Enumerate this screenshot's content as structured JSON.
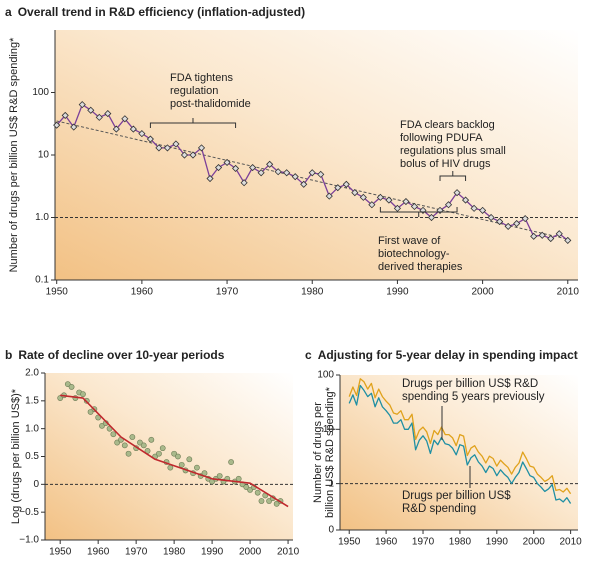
{
  "chart_data": [
    {
      "type": "line",
      "panel": "a",
      "title": "Overall trend in R&D efficiency (inflation-adjusted)",
      "ylabel": [
        "Number of drugs per billion US$ R&D spending*"
      ],
      "x": [
        1950,
        1951,
        1952,
        1953,
        1954,
        1955,
        1956,
        1957,
        1958,
        1959,
        1960,
        1961,
        1962,
        1963,
        1964,
        1965,
        1966,
        1967,
        1968,
        1969,
        1970,
        1971,
        1972,
        1973,
        1974,
        1975,
        1976,
        1977,
        1978,
        1979,
        1980,
        1981,
        1982,
        1983,
        1984,
        1985,
        1986,
        1987,
        1988,
        1989,
        1990,
        1991,
        1992,
        1993,
        1994,
        1995,
        1996,
        1997,
        1998,
        1999,
        2000,
        2001,
        2002,
        2003,
        2004,
        2005,
        2006,
        2007,
        2008,
        2009,
        2010
      ],
      "series": [
        {
          "color": "#7b3f99",
          "values": [
            30,
            43,
            28,
            64,
            52,
            40,
            46,
            26,
            38,
            26,
            22,
            18,
            13,
            13,
            15,
            10,
            10,
            13,
            4.2,
            6.3,
            7.6,
            6.1,
            3.6,
            6.3,
            5.2,
            7.1,
            5.4,
            5.2,
            4.5,
            3.4,
            5.2,
            4.9,
            2.2,
            3.0,
            3.4,
            2.5,
            2.1,
            1.6,
            2.1,
            1.9,
            1.4,
            1.8,
            1.5,
            1.3,
            1.0,
            1.3,
            1.6,
            2.5,
            1.9,
            1.4,
            1.3,
            1.0,
            0.86,
            0.72,
            0.8,
            0.96,
            0.5,
            0.52,
            0.46,
            0.55,
            0.43
          ]
        }
      ],
      "marker": "diamond",
      "trend": {
        "x": [
          1950,
          2010
        ],
        "values": [
          35,
          0.45
        ]
      },
      "reference_line": 1,
      "ylog": true,
      "xlim": [
        1949.8,
        2011.2
      ],
      "ylim": [
        0.1,
        1000
      ],
      "xticks": [
        1950,
        1960,
        1970,
        1980,
        1990,
        2000,
        2010
      ],
      "yticks": [
        0.1,
        {
          "value": 1,
          "label": "1.0"
        },
        10,
        100
      ],
      "annotations": [
        {
          "lines": [
            "FDA tightens",
            "regulation",
            "post-thalidomide"
          ],
          "x": [
            1961,
            1971
          ]
        },
        {
          "lines": [
            "FDA clears backlog",
            "following PDUFA",
            "regulations plus small",
            "bolus of HIV drugs"
          ],
          "x": [
            1995,
            1998
          ]
        },
        {
          "lines": [
            "First wave of",
            "biotechnology-",
            "derived therapies"
          ],
          "x": [
            1988,
            1997
          ]
        }
      ]
    },
    {
      "type": "scatter",
      "panel": "b",
      "title": "Rate of decline over 10-year periods",
      "ylabel": [
        "Log (drugs per billion US$)*"
      ],
      "x": [
        1950,
        1951,
        1952,
        1953,
        1954,
        1955,
        1956,
        1957,
        1958,
        1959,
        1960,
        1961,
        1962,
        1963,
        1964,
        1965,
        1966,
        1967,
        1968,
        1969,
        1970,
        1971,
        1972,
        1973,
        1974,
        1975,
        1976,
        1977,
        1978,
        1979,
        1980,
        1981,
        1982,
        1983,
        1984,
        1985,
        1986,
        1987,
        1988,
        1989,
        1990,
        1991,
        1992,
        1993,
        1994,
        1995,
        1996,
        1997,
        1998,
        1999,
        2000,
        2001,
        2002,
        2003,
        2004,
        2005,
        2006,
        2007,
        2008
      ],
      "values": [
        1.55,
        1.6,
        1.8,
        1.75,
        1.55,
        1.65,
        1.62,
        1.5,
        1.3,
        1.35,
        1.2,
        1.05,
        1.1,
        1.0,
        0.9,
        0.75,
        0.8,
        0.7,
        0.55,
        0.85,
        0.65,
        0.75,
        0.7,
        0.6,
        0.8,
        0.5,
        0.55,
        0.65,
        0.4,
        0.3,
        0.55,
        0.5,
        0.35,
        0.25,
        0.45,
        0.2,
        0.3,
        0.15,
        0.2,
        0.1,
        0.05,
        0.1,
        0.15,
        0.05,
        0.1,
        0.4,
        0.05,
        0.1,
        0.0,
        -0.05,
        -0.1,
        -0.05,
        -0.15,
        -0.3,
        -0.2,
        -0.3,
        -0.25,
        -0.35,
        -0.3
      ],
      "color": "#a9b98b",
      "fit": {
        "x": [
          1950,
          1956,
          1966,
          1975,
          1990,
          2000,
          2010
        ],
        "values": [
          1.6,
          1.55,
          0.85,
          0.45,
          0.1,
          0.02,
          -0.4
        ],
        "color": "#c0282d"
      },
      "reference_line": 0,
      "ylog": false,
      "xlim": [
        1946,
        2011.3
      ],
      "ylim": [
        -1,
        2
      ],
      "xticks": [
        1950,
        1960,
        1970,
        1980,
        1990,
        2000,
        2010
      ],
      "yticks": [
        {
          "value": -1,
          "label": "−1.0"
        },
        {
          "value": -0.5,
          "label": "−0.5"
        },
        0,
        0.5,
        {
          "value": 1,
          "label": "1.0"
        },
        1.5,
        {
          "value": 2,
          "label": "2.0"
        }
      ]
    },
    {
      "type": "line",
      "panel": "c",
      "title": "Adjusting for 5-year delay in spending impact",
      "ylabel": [
        "Number of drugs per",
        "billion US$ R&D spending*"
      ],
      "x": [
        1950,
        1951,
        1952,
        1953,
        1954,
        1955,
        1956,
        1957,
        1958,
        1959,
        1960,
        1961,
        1962,
        1963,
        1964,
        1965,
        1966,
        1967,
        1968,
        1969,
        1970,
        1971,
        1972,
        1973,
        1974,
        1975,
        1976,
        1977,
        1978,
        1979,
        1980,
        1981,
        1982,
        1983,
        1984,
        1985,
        1986,
        1987,
        1988,
        1989,
        1990,
        1991,
        1992,
        1993,
        1994,
        1995,
        1996,
        1997,
        1998,
        1999,
        2000,
        2001,
        2002,
        2003,
        2004,
        2005,
        2006,
        2007,
        2008,
        2009,
        2010
      ],
      "series": [
        {
          "name": "Drugs per billion US$ R&D spending",
          "color": "#1f8fa3",
          "values": [
            30,
            43,
            28,
            64,
            52,
            40,
            46,
            26,
            38,
            26,
            22,
            18,
            13,
            13,
            15,
            10,
            10,
            13,
            4.2,
            6.3,
            7.6,
            6.1,
            3.6,
            6.3,
            5.2,
            7.1,
            5.4,
            5.2,
            4.5,
            3.4,
            5.2,
            4.9,
            2.2,
            3.0,
            3.4,
            2.5,
            2.1,
            1.6,
            2.1,
            1.9,
            1.4,
            1.8,
            1.5,
            1.3,
            1.0,
            1.3,
            1.6,
            2.5,
            1.9,
            1.4,
            1.3,
            1.0,
            0.86,
            0.72,
            0.8,
            0.96,
            0.5,
            0.52,
            0.46,
            0.55,
            0.43
          ]
        },
        {
          "name": "Drugs per billion US$ R&D spending 5 years previously",
          "color": "#e0a21c",
          "values": [
            40,
            60,
            42,
            85,
            75,
            55,
            70,
            38,
            55,
            40,
            33,
            28,
            20,
            19,
            22,
            15,
            15,
            19,
            6.5,
            9.5,
            11,
            9,
            5.5,
            9.5,
            8,
            11,
            8,
            8,
            7,
            5,
            8,
            7.5,
            3.3,
            4.5,
            5,
            3.8,
            3.2,
            2.4,
            3.2,
            2.9,
            2.1,
            2.7,
            2.3,
            2,
            1.5,
            2,
            2.4,
            3.8,
            2.9,
            2.1,
            2,
            1.5,
            1.3,
            1.1,
            1.2,
            1.4,
            0.75,
            0.78,
            0.7,
            0.82,
            0.65
          ]
        }
      ],
      "reference_line": 1,
      "ylog": true,
      "xlim": [
        1947.5,
        2012
      ],
      "ylim": [
        0.14,
        100
      ],
      "xticks": [
        1950,
        1960,
        1970,
        1980,
        1990,
        2000,
        2010
      ],
      "yticks": [
        {
          "value": 0.14,
          "label": "0"
        },
        1,
        10,
        100
      ]
    }
  ]
}
